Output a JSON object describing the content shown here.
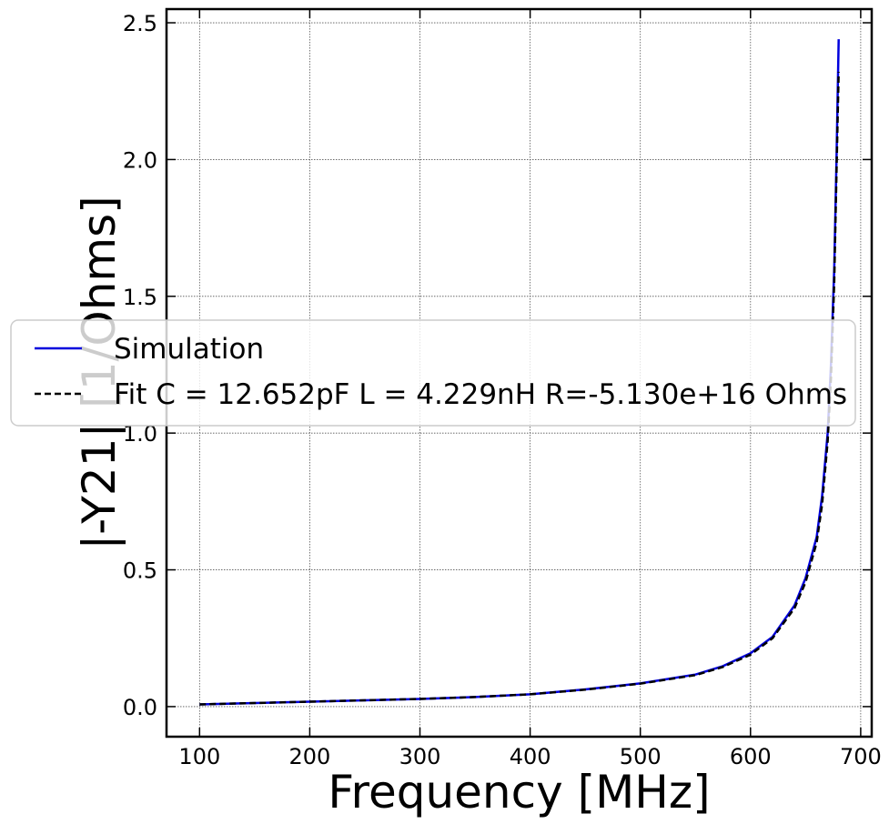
{
  "chart_data": {
    "type": "line",
    "title": "",
    "xlabel": "Frequency [MHz]",
    "ylabel": "|-Y21| [1/Ohms]",
    "xlim": [
      70,
      710
    ],
    "ylim": [
      -0.11,
      2.55
    ],
    "xticks": [
      100,
      200,
      300,
      400,
      500,
      600,
      700
    ],
    "yticks": [
      0.0,
      0.5,
      1.0,
      1.5,
      2.0,
      2.5
    ],
    "xtick_labels": [
      "100",
      "200",
      "300",
      "400",
      "500",
      "600",
      "700"
    ],
    "ytick_labels": [
      "0.0",
      "0.5",
      "1.0",
      "1.5",
      "2.0",
      "2.5"
    ],
    "grid": true,
    "legend_position": "center-left",
    "series": [
      {
        "name": "Simulation",
        "color": "#0000dd",
        "style": "solid",
        "x": [
          100,
          150,
          200,
          250,
          300,
          350,
          400,
          450,
          500,
          550,
          575,
          600,
          620,
          640,
          650,
          660,
          665,
          670,
          673,
          676,
          678,
          680
        ],
        "y": [
          0.008,
          0.013,
          0.018,
          0.023,
          0.028,
          0.035,
          0.045,
          0.063,
          0.085,
          0.117,
          0.148,
          0.195,
          0.255,
          0.37,
          0.47,
          0.62,
          0.77,
          1.0,
          1.25,
          1.6,
          2.0,
          2.44
        ]
      },
      {
        "name": "Fit C = 12.652pF L = 4.229nH R=-5.130e+16 Ohms",
        "color": "#000000",
        "style": "dashed",
        "x": [
          100,
          150,
          200,
          250,
          300,
          350,
          400,
          450,
          500,
          550,
          575,
          600,
          620,
          640,
          650,
          660,
          665,
          670,
          673,
          676,
          678,
          680
        ],
        "y": [
          0.008,
          0.013,
          0.018,
          0.023,
          0.028,
          0.035,
          0.045,
          0.062,
          0.084,
          0.115,
          0.145,
          0.19,
          0.25,
          0.36,
          0.455,
          0.6,
          0.74,
          0.97,
          1.2,
          1.55,
          1.95,
          2.32
        ]
      }
    ]
  }
}
